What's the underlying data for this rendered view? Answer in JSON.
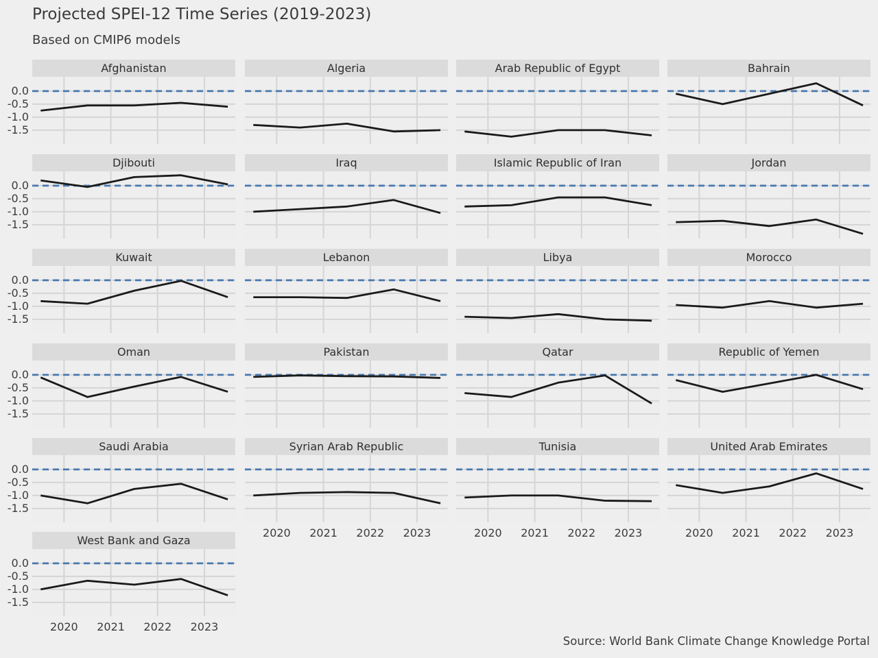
{
  "header": {
    "title": "Projected SPEI-12 Time Series (2019-2023)",
    "subtitle": "Based on CMIP6 models"
  },
  "footer": {
    "source": "Source: World Bank Climate Change Knowledge Portal"
  },
  "colors": {
    "background": "#efeff0",
    "strip_background": "#dbdbdc",
    "grid": "#d5d5d7",
    "zero_line": "#4878ae",
    "series_line": "#1a1a1a",
    "text": "#3a3a3a"
  },
  "chart_data": {
    "type": "line",
    "title": "Projected SPEI-12 Time Series (2019-2023)",
    "subtitle": "Based on CMIP6 models",
    "x": [
      2019.5,
      2020.5,
      2021.5,
      2022.5,
      2023.5
    ],
    "xlim": [
      2019.32,
      2023.66
    ],
    "x_tick_positions": [
      2020,
      2021,
      2022,
      2023
    ],
    "x_tick_labels": [
      "2020",
      "2021",
      "2022",
      "2023"
    ],
    "ylim": [
      -2.03,
      0.55
    ],
    "y_tick_positions": [
      0.0,
      -0.5,
      -1.0,
      -1.5
    ],
    "y_tick_labels": [
      "0.0",
      "-0.5",
      "-1.0",
      "-1.5"
    ],
    "grid": true,
    "zero_reference_line": {
      "y": 0.0,
      "style": "dashed",
      "color": "#4878ae"
    },
    "legend": "none",
    "facets": [
      {
        "name": "Afghanistan",
        "values": [
          -0.75,
          -0.55,
          -0.55,
          -0.45,
          -0.6
        ]
      },
      {
        "name": "Algeria",
        "values": [
          -1.3,
          -1.4,
          -1.25,
          -1.55,
          -1.5
        ]
      },
      {
        "name": "Arab Republic of Egypt",
        "values": [
          -1.55,
          -1.75,
          -1.5,
          -1.5,
          -1.7
        ]
      },
      {
        "name": "Bahrain",
        "values": [
          -0.1,
          -0.5,
          -0.1,
          0.3,
          -0.55
        ]
      },
      {
        "name": "Djibouti",
        "values": [
          0.2,
          -0.05,
          0.33,
          0.4,
          0.05
        ]
      },
      {
        "name": "Iraq",
        "values": [
          -1.0,
          -0.9,
          -0.8,
          -0.55,
          -1.05
        ]
      },
      {
        "name": "Islamic Republic of Iran",
        "values": [
          -0.8,
          -0.75,
          -0.45,
          -0.45,
          -0.75
        ]
      },
      {
        "name": "Jordan",
        "values": [
          -1.4,
          -1.35,
          -1.55,
          -1.3,
          -1.85
        ]
      },
      {
        "name": "Kuwait",
        "values": [
          -0.8,
          -0.9,
          -0.4,
          -0.02,
          -0.65
        ]
      },
      {
        "name": "Lebanon",
        "values": [
          -0.65,
          -0.65,
          -0.68,
          -0.35,
          -0.8
        ]
      },
      {
        "name": "Libya",
        "values": [
          -1.4,
          -1.45,
          -1.3,
          -1.5,
          -1.55
        ]
      },
      {
        "name": "Morocco",
        "values": [
          -0.95,
          -1.05,
          -0.8,
          -1.05,
          -0.9
        ]
      },
      {
        "name": "Oman",
        "values": [
          -0.1,
          -0.85,
          -0.45,
          -0.08,
          -0.65
        ]
      },
      {
        "name": "Pakistan",
        "values": [
          -0.08,
          -0.02,
          -0.05,
          -0.06,
          -0.12
        ]
      },
      {
        "name": "Qatar",
        "values": [
          -0.7,
          -0.85,
          -0.3,
          -0.02,
          -1.1
        ]
      },
      {
        "name": "Republic of Yemen",
        "values": [
          -0.2,
          -0.65,
          -0.33,
          0.0,
          -0.55
        ]
      },
      {
        "name": "Saudi Arabia",
        "values": [
          -1.0,
          -1.3,
          -0.75,
          -0.55,
          -1.15
        ]
      },
      {
        "name": "Syrian Arab Republic",
        "values": [
          -1.0,
          -0.9,
          -0.87,
          -0.9,
          -1.3
        ]
      },
      {
        "name": "Tunisia",
        "values": [
          -1.08,
          -1.0,
          -1.0,
          -1.2,
          -1.22
        ]
      },
      {
        "name": "United Arab Emirates",
        "values": [
          -0.6,
          -0.9,
          -0.65,
          -0.15,
          -0.75
        ]
      },
      {
        "name": "West Bank and Gaza",
        "values": [
          -1.0,
          -0.67,
          -0.82,
          -0.6,
          -1.23
        ]
      }
    ]
  }
}
